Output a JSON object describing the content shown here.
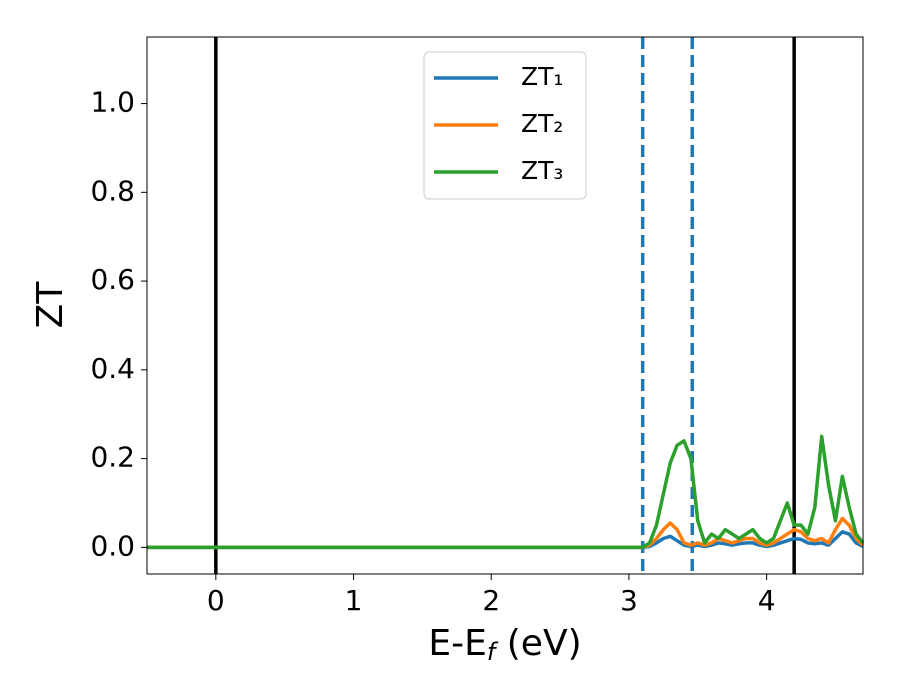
{
  "chart_data": {
    "type": "line",
    "xlabel": [
      "E-E",
      "f",
      " (eV)"
    ],
    "ylabel": "ZT",
    "x": [
      -0.5,
      3.1,
      3.15,
      3.2,
      3.25,
      3.3,
      3.35,
      3.4,
      3.45,
      3.5,
      3.55,
      3.6,
      3.65,
      3.7,
      3.75,
      3.8,
      3.85,
      3.9,
      3.95,
      4.0,
      4.05,
      4.1,
      4.15,
      4.2,
      4.25,
      4.3,
      4.35,
      4.4,
      4.45,
      4.5,
      4.55,
      4.6,
      4.65,
      4.7
    ],
    "series": [
      {
        "name": "ZT₁",
        "color": "#1f77b4",
        "values": [
          0,
          0,
          0.002,
          0.01,
          0.02,
          0.025,
          0.015,
          0.005,
          0.002,
          0.005,
          0.002,
          0.005,
          0.01,
          0.008,
          0.005,
          0.008,
          0.01,
          0.01,
          0.005,
          0.002,
          0.005,
          0.01,
          0.015,
          0.02,
          0.018,
          0.01,
          0.008,
          0.01,
          0.005,
          0.02,
          0.035,
          0.03,
          0.01,
          0.002
        ]
      },
      {
        "name": "ZT₂",
        "color": "#ff7f0e",
        "values": [
          0,
          0,
          0.005,
          0.02,
          0.04,
          0.055,
          0.04,
          0.01,
          0.005,
          0.01,
          0.005,
          0.01,
          0.02,
          0.015,
          0.01,
          0.015,
          0.02,
          0.02,
          0.01,
          0.005,
          0.01,
          0.02,
          0.03,
          0.04,
          0.035,
          0.02,
          0.015,
          0.02,
          0.01,
          0.04,
          0.065,
          0.05,
          0.02,
          0.005
        ]
      },
      {
        "name": "ZT₃",
        "color": "#2ca02c",
        "values": [
          0,
          0,
          0.01,
          0.05,
          0.12,
          0.19,
          0.23,
          0.24,
          0.2,
          0.06,
          0.01,
          0.03,
          0.02,
          0.04,
          0.03,
          0.02,
          0.03,
          0.04,
          0.02,
          0.01,
          0.02,
          0.06,
          0.1,
          0.05,
          0.05,
          0.03,
          0.09,
          0.25,
          0.14,
          0.06,
          0.16,
          0.09,
          0.03,
          0.01
        ]
      }
    ],
    "vlines": [
      {
        "x": 0,
        "color": "#000000",
        "style": "solid"
      },
      {
        "x": 4.2,
        "color": "#000000",
        "style": "solid"
      },
      {
        "x": 3.1,
        "color": "#1f77b4",
        "style": "dashed"
      },
      {
        "x": 3.46,
        "color": "#1f77b4",
        "style": "dashed"
      }
    ],
    "xlim": [
      -0.5,
      4.7
    ],
    "xticks": [
      0,
      1,
      2,
      3,
      4
    ],
    "ylim": [
      -0.06,
      1.15
    ],
    "yticks": [
      {
        "value": 0,
        "label": "0.0"
      },
      {
        "value": 0.2,
        "label": "0.2"
      },
      {
        "value": 0.4,
        "label": "0.4"
      },
      {
        "value": 0.6,
        "label": "0.6"
      },
      {
        "value": 0.8,
        "label": "0.8"
      },
      {
        "value": 1.0,
        "label": "1.0"
      }
    ],
    "grid": false,
    "legend": "upper center"
  }
}
